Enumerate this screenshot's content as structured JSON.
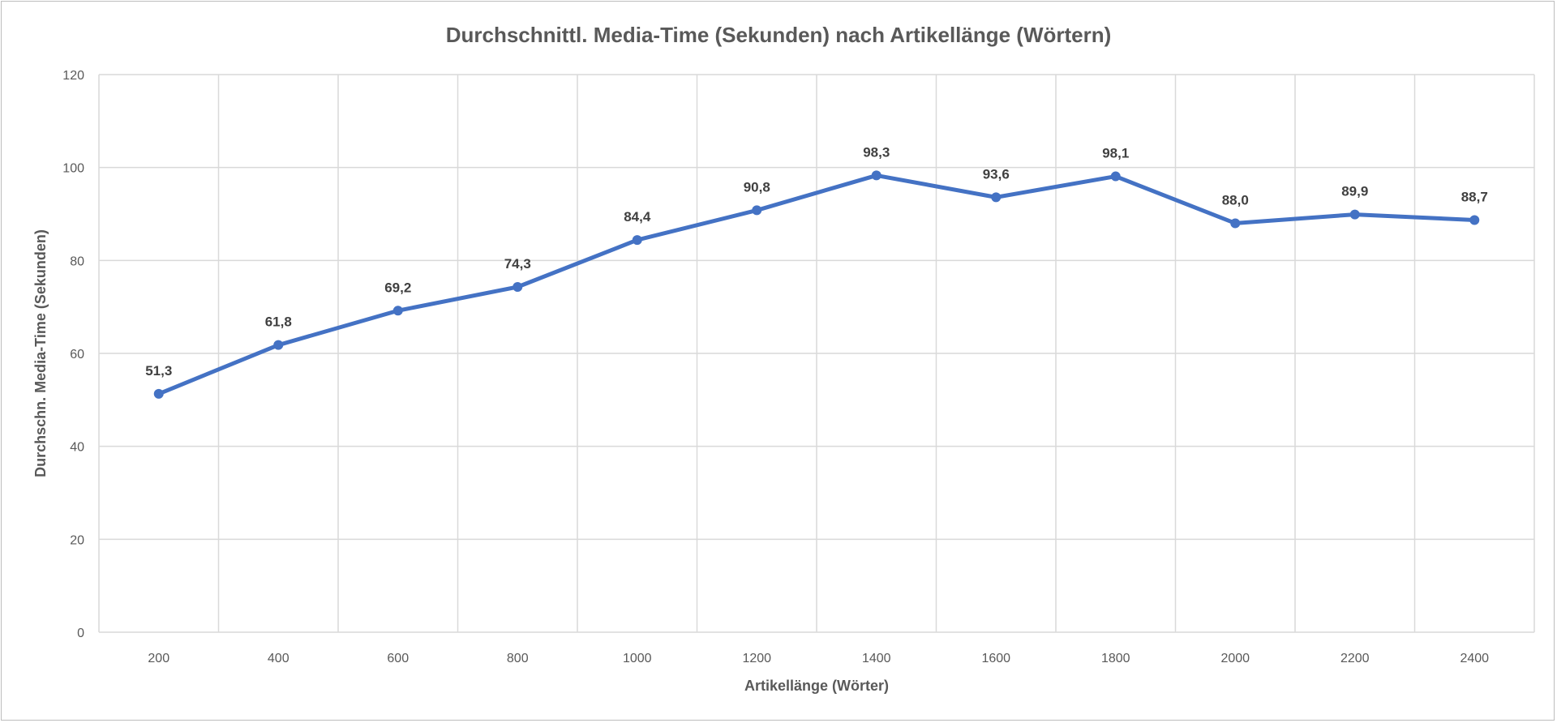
{
  "chart_data": {
    "type": "line",
    "title": "Durchschnittl. Media-Time (Sekunden) nach Artikellänge (Wörtern)",
    "xlabel": "Artikellänge (Wörter)",
    "ylabel": "Durchschn. Media-Time (Sekunden)",
    "categories": [
      "200",
      "400",
      "600",
      "800",
      "1000",
      "1200",
      "1400",
      "1600",
      "1800",
      "2000",
      "2200",
      "2400"
    ],
    "values": [
      51.3,
      61.8,
      69.2,
      74.3,
      84.4,
      90.8,
      98.3,
      93.6,
      98.1,
      88.0,
      89.9,
      88.7
    ],
    "data_labels": [
      "51,3",
      "61,8",
      "69,2",
      "74,3",
      "84,4",
      "90,8",
      "98,3",
      "93,6",
      "98,1",
      "88,0",
      "89,9",
      "88,7"
    ],
    "ylim": [
      0,
      120
    ],
    "yticks": [
      "0",
      "20",
      "40",
      "60",
      "80",
      "100",
      "120"
    ],
    "grid": true,
    "legend": "none",
    "line_color": "#4472C4"
  }
}
